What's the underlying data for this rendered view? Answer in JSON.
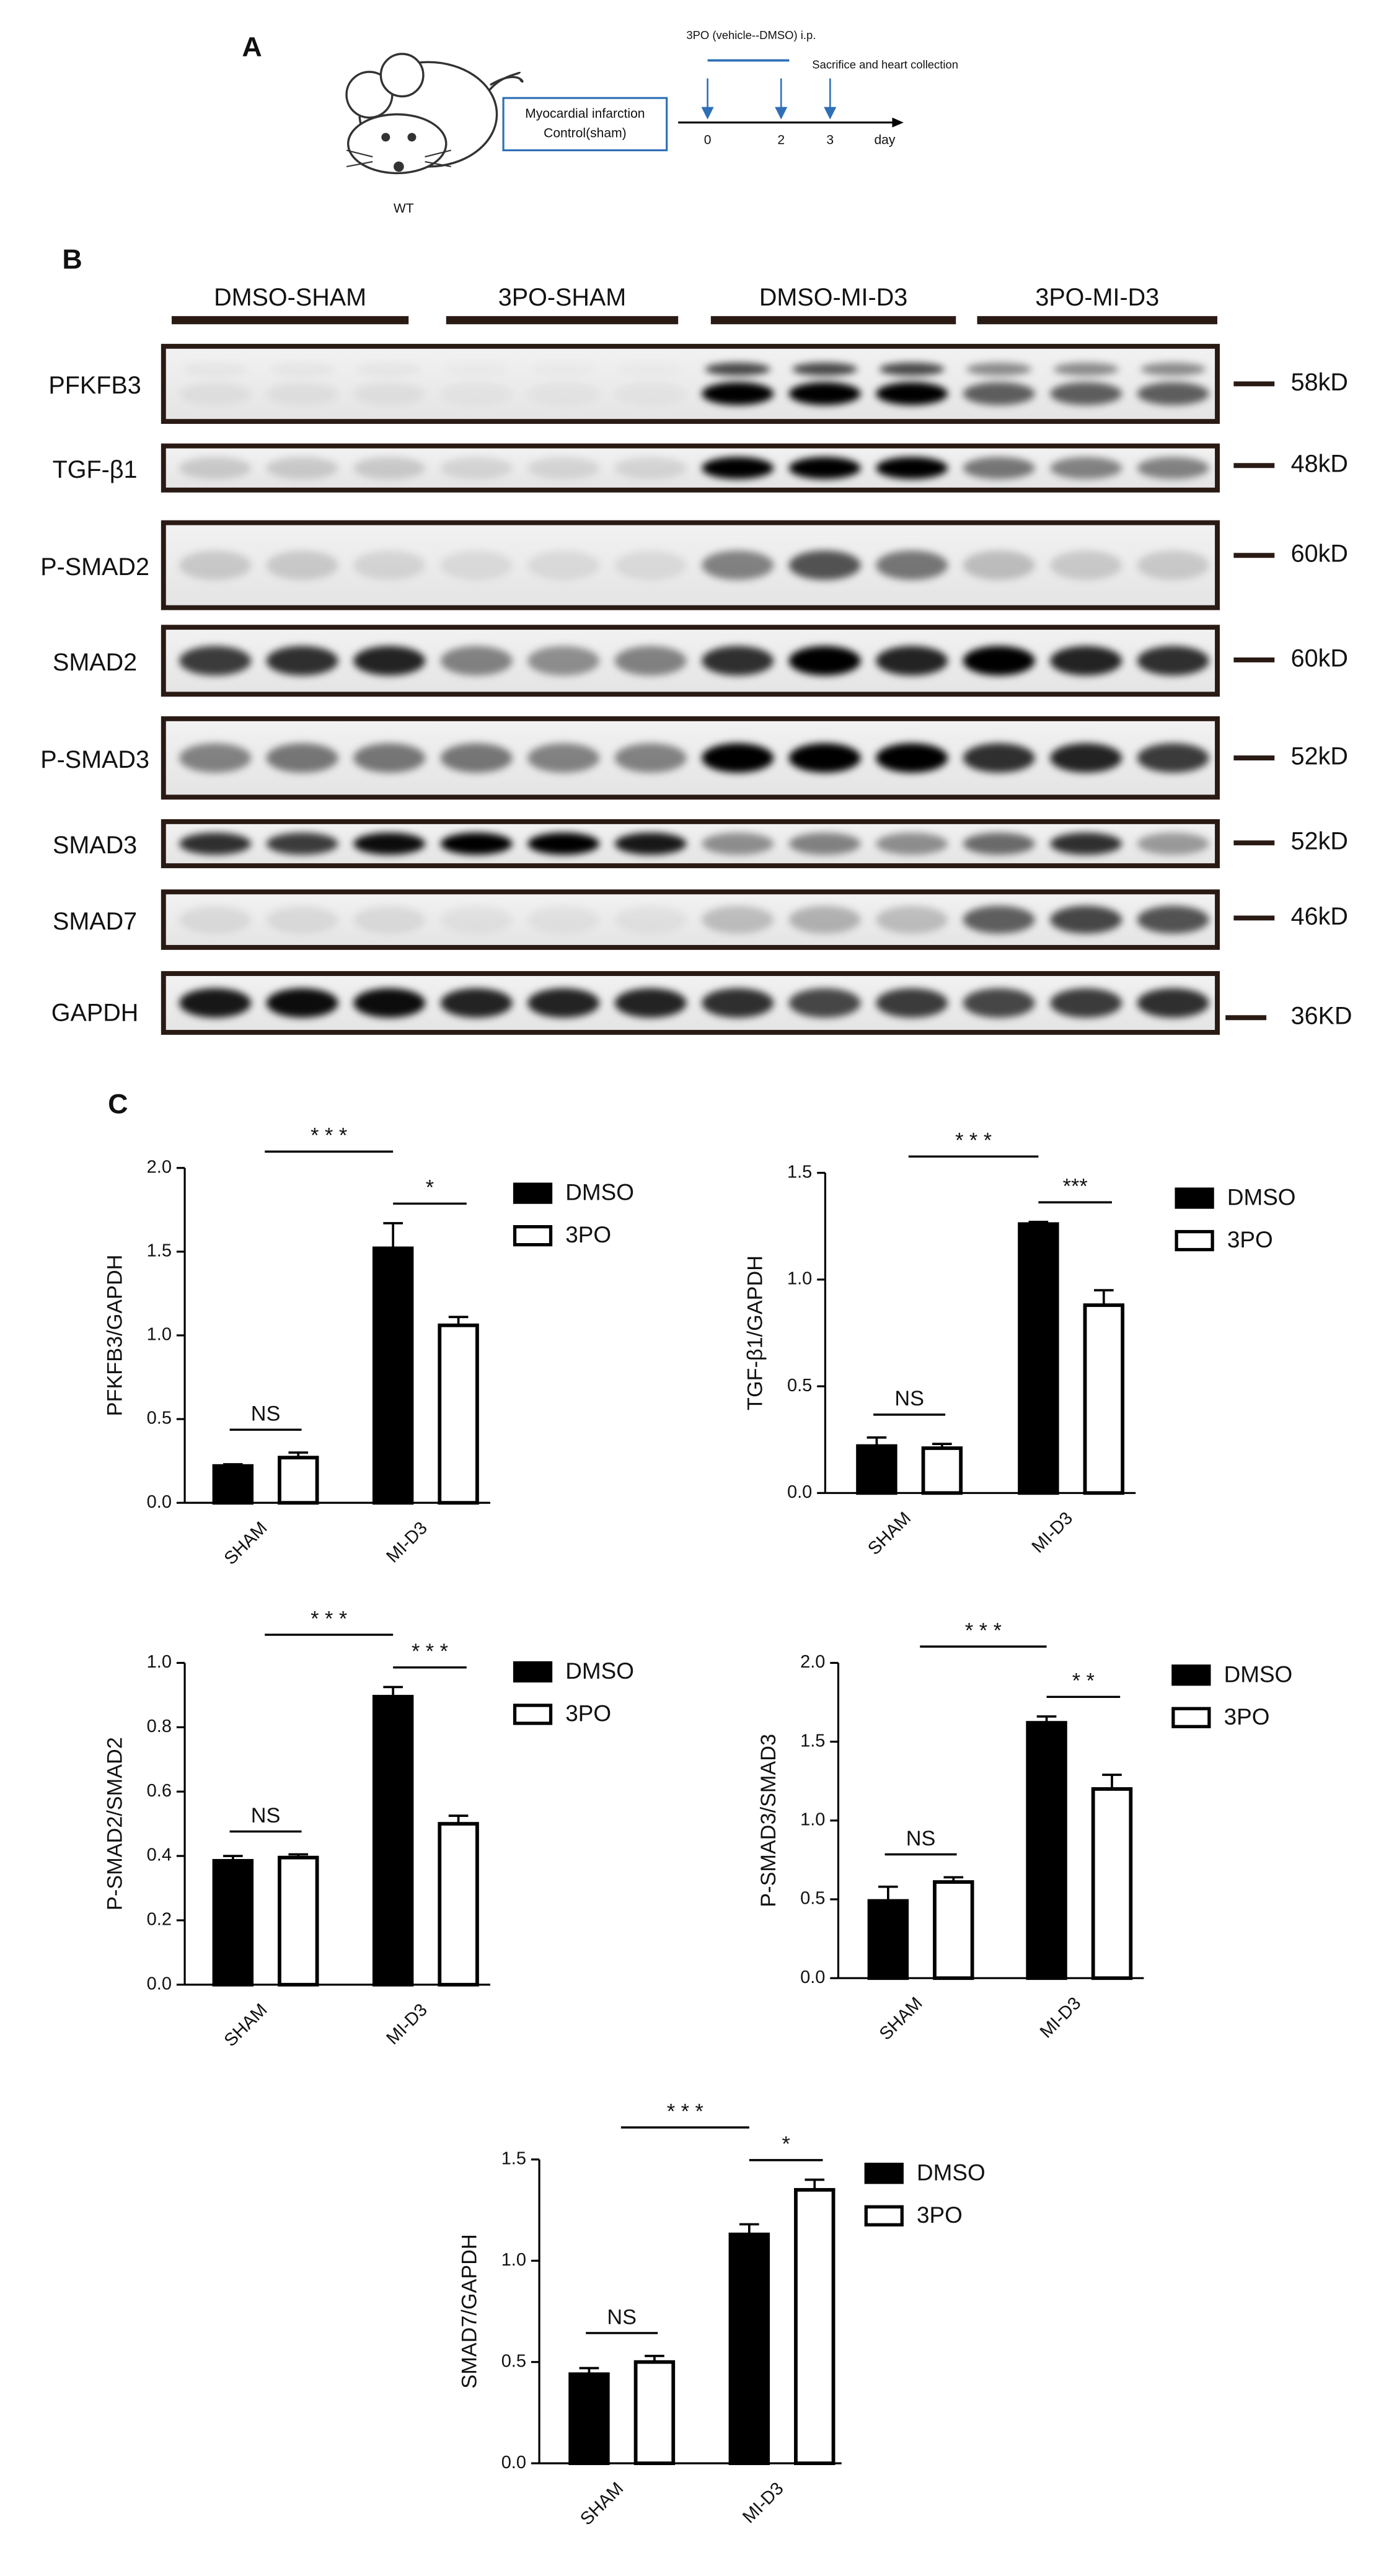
{
  "panel_a": {
    "label": "A",
    "treatment": "3PO (vehicle--DMSO) i.p.",
    "collection": "Sacrifice and heart  collection",
    "model": [
      "Myocardial infarction",
      "Control(sham)"
    ],
    "strain": "WT",
    "timeline_labels": [
      "0",
      "2",
      "3"
    ],
    "unit": "day"
  },
  "panel_b": {
    "label": "B",
    "groups": [
      "DMSO-SHAM",
      "3PO-SHAM",
      "DMSO-MI-D3",
      "3PO-MI-D3"
    ],
    "blots": [
      {
        "protein": "PFKFB3",
        "size": "58kD"
      },
      {
        "protein": "TGF-β1",
        "size": "48kD"
      },
      {
        "protein": "P-SMAD2",
        "size": "60kD"
      },
      {
        "protein": "SMAD2",
        "size": "60kD"
      },
      {
        "protein": "P-SMAD3",
        "size": "52kD"
      },
      {
        "protein": "SMAD3",
        "size": "52kD"
      },
      {
        "protein": "SMAD7",
        "size": "46kD"
      },
      {
        "protein": "GAPDH",
        "size": "36KD"
      }
    ]
  },
  "panel_c": {
    "label": "C"
  },
  "chart_data": [
    {
      "type": "bar",
      "ylabel": "PFKFB3/GAPDH",
      "categories": [
        "SHAM",
        "MI-D3"
      ],
      "series": [
        {
          "name": "DMSO",
          "color": "#000000",
          "values": [
            0.22,
            1.52
          ],
          "errors": [
            0.01,
            0.15
          ]
        },
        {
          "name": "3PO",
          "color": "#ffffff",
          "values": [
            0.27,
            1.06
          ],
          "errors": [
            0.03,
            0.05
          ]
        }
      ],
      "ylim": [
        0,
        2
      ],
      "yticks": [
        {
          "value": 0,
          "label": "0.0"
        },
        0.5,
        {
          "value": 1,
          "label": "1.0"
        },
        1.5,
        {
          "value": 2,
          "label": "2.0"
        }
      ],
      "annotations": [
        "NS",
        "* * *",
        "*"
      ]
    },
    {
      "type": "bar",
      "ylabel": "TGF-β1/GAPDH",
      "categories": [
        "SHAM",
        "MI-D3"
      ],
      "series": [
        {
          "name": "DMSO",
          "color": "#000000",
          "values": [
            0.22,
            1.26
          ],
          "errors": [
            0.04,
            0.01
          ]
        },
        {
          "name": "3PO",
          "color": "#ffffff",
          "values": [
            0.21,
            0.88
          ],
          "errors": [
            0.02,
            0.07
          ]
        }
      ],
      "ylim": [
        0,
        1.5
      ],
      "yticks": [
        {
          "value": 0,
          "label": "0.0"
        },
        0.5,
        {
          "value": 1,
          "label": "1.0"
        },
        1.5
      ],
      "annotations": [
        "NS",
        "* * *",
        "***"
      ]
    },
    {
      "type": "bar",
      "ylabel": "P-SMAD2/SMAD2",
      "categories": [
        "SHAM",
        "MI-D3"
      ],
      "series": [
        {
          "name": "DMSO",
          "color": "#000000",
          "values": [
            0.385,
            0.895
          ],
          "errors": [
            0.015,
            0.03
          ]
        },
        {
          "name": "3PO",
          "color": "#ffffff",
          "values": [
            0.395,
            0.5
          ],
          "errors": [
            0.01,
            0.025
          ]
        }
      ],
      "ylim": [
        0,
        1
      ],
      "yticks": [
        {
          "value": 0,
          "label": "0.0"
        },
        0.2,
        0.4,
        0.6,
        0.8,
        {
          "value": 1,
          "label": "1.0"
        }
      ],
      "annotations": [
        "NS",
        "* * *",
        "* * *"
      ]
    },
    {
      "type": "bar",
      "ylabel": "P-SMAD3/SMAD3",
      "categories": [
        "SHAM",
        "MI-D3"
      ],
      "series": [
        {
          "name": "DMSO",
          "color": "#000000",
          "values": [
            0.49,
            1.62
          ],
          "errors": [
            0.09,
            0.04
          ]
        },
        {
          "name": "3PO",
          "color": "#ffffff",
          "values": [
            0.61,
            1.2
          ],
          "errors": [
            0.03,
            0.09
          ]
        }
      ],
      "ylim": [
        0,
        2
      ],
      "yticks": [
        {
          "value": 0,
          "label": "0.0"
        },
        0.5,
        {
          "value": 1,
          "label": "1.0"
        },
        1.5,
        {
          "value": 2,
          "label": "2.0"
        }
      ],
      "annotations": [
        "NS",
        "* * *",
        "* *"
      ]
    },
    {
      "type": "bar",
      "ylabel": "SMAD7/GAPDH",
      "categories": [
        "SHAM",
        "MI-D3"
      ],
      "series": [
        {
          "name": "DMSO",
          "color": "#000000",
          "values": [
            0.44,
            1.13
          ],
          "errors": [
            0.03,
            0.05
          ]
        },
        {
          "name": "3PO",
          "color": "#ffffff",
          "values": [
            0.5,
            1.35
          ],
          "errors": [
            0.03,
            0.05
          ]
        }
      ],
      "ylim": [
        0,
        1.5
      ],
      "yticks": [
        {
          "value": 0,
          "label": "0.0"
        },
        0.5,
        {
          "value": 1,
          "label": "1.0"
        },
        1.5
      ],
      "annotations": [
        "NS",
        "* * *",
        "*"
      ]
    }
  ]
}
